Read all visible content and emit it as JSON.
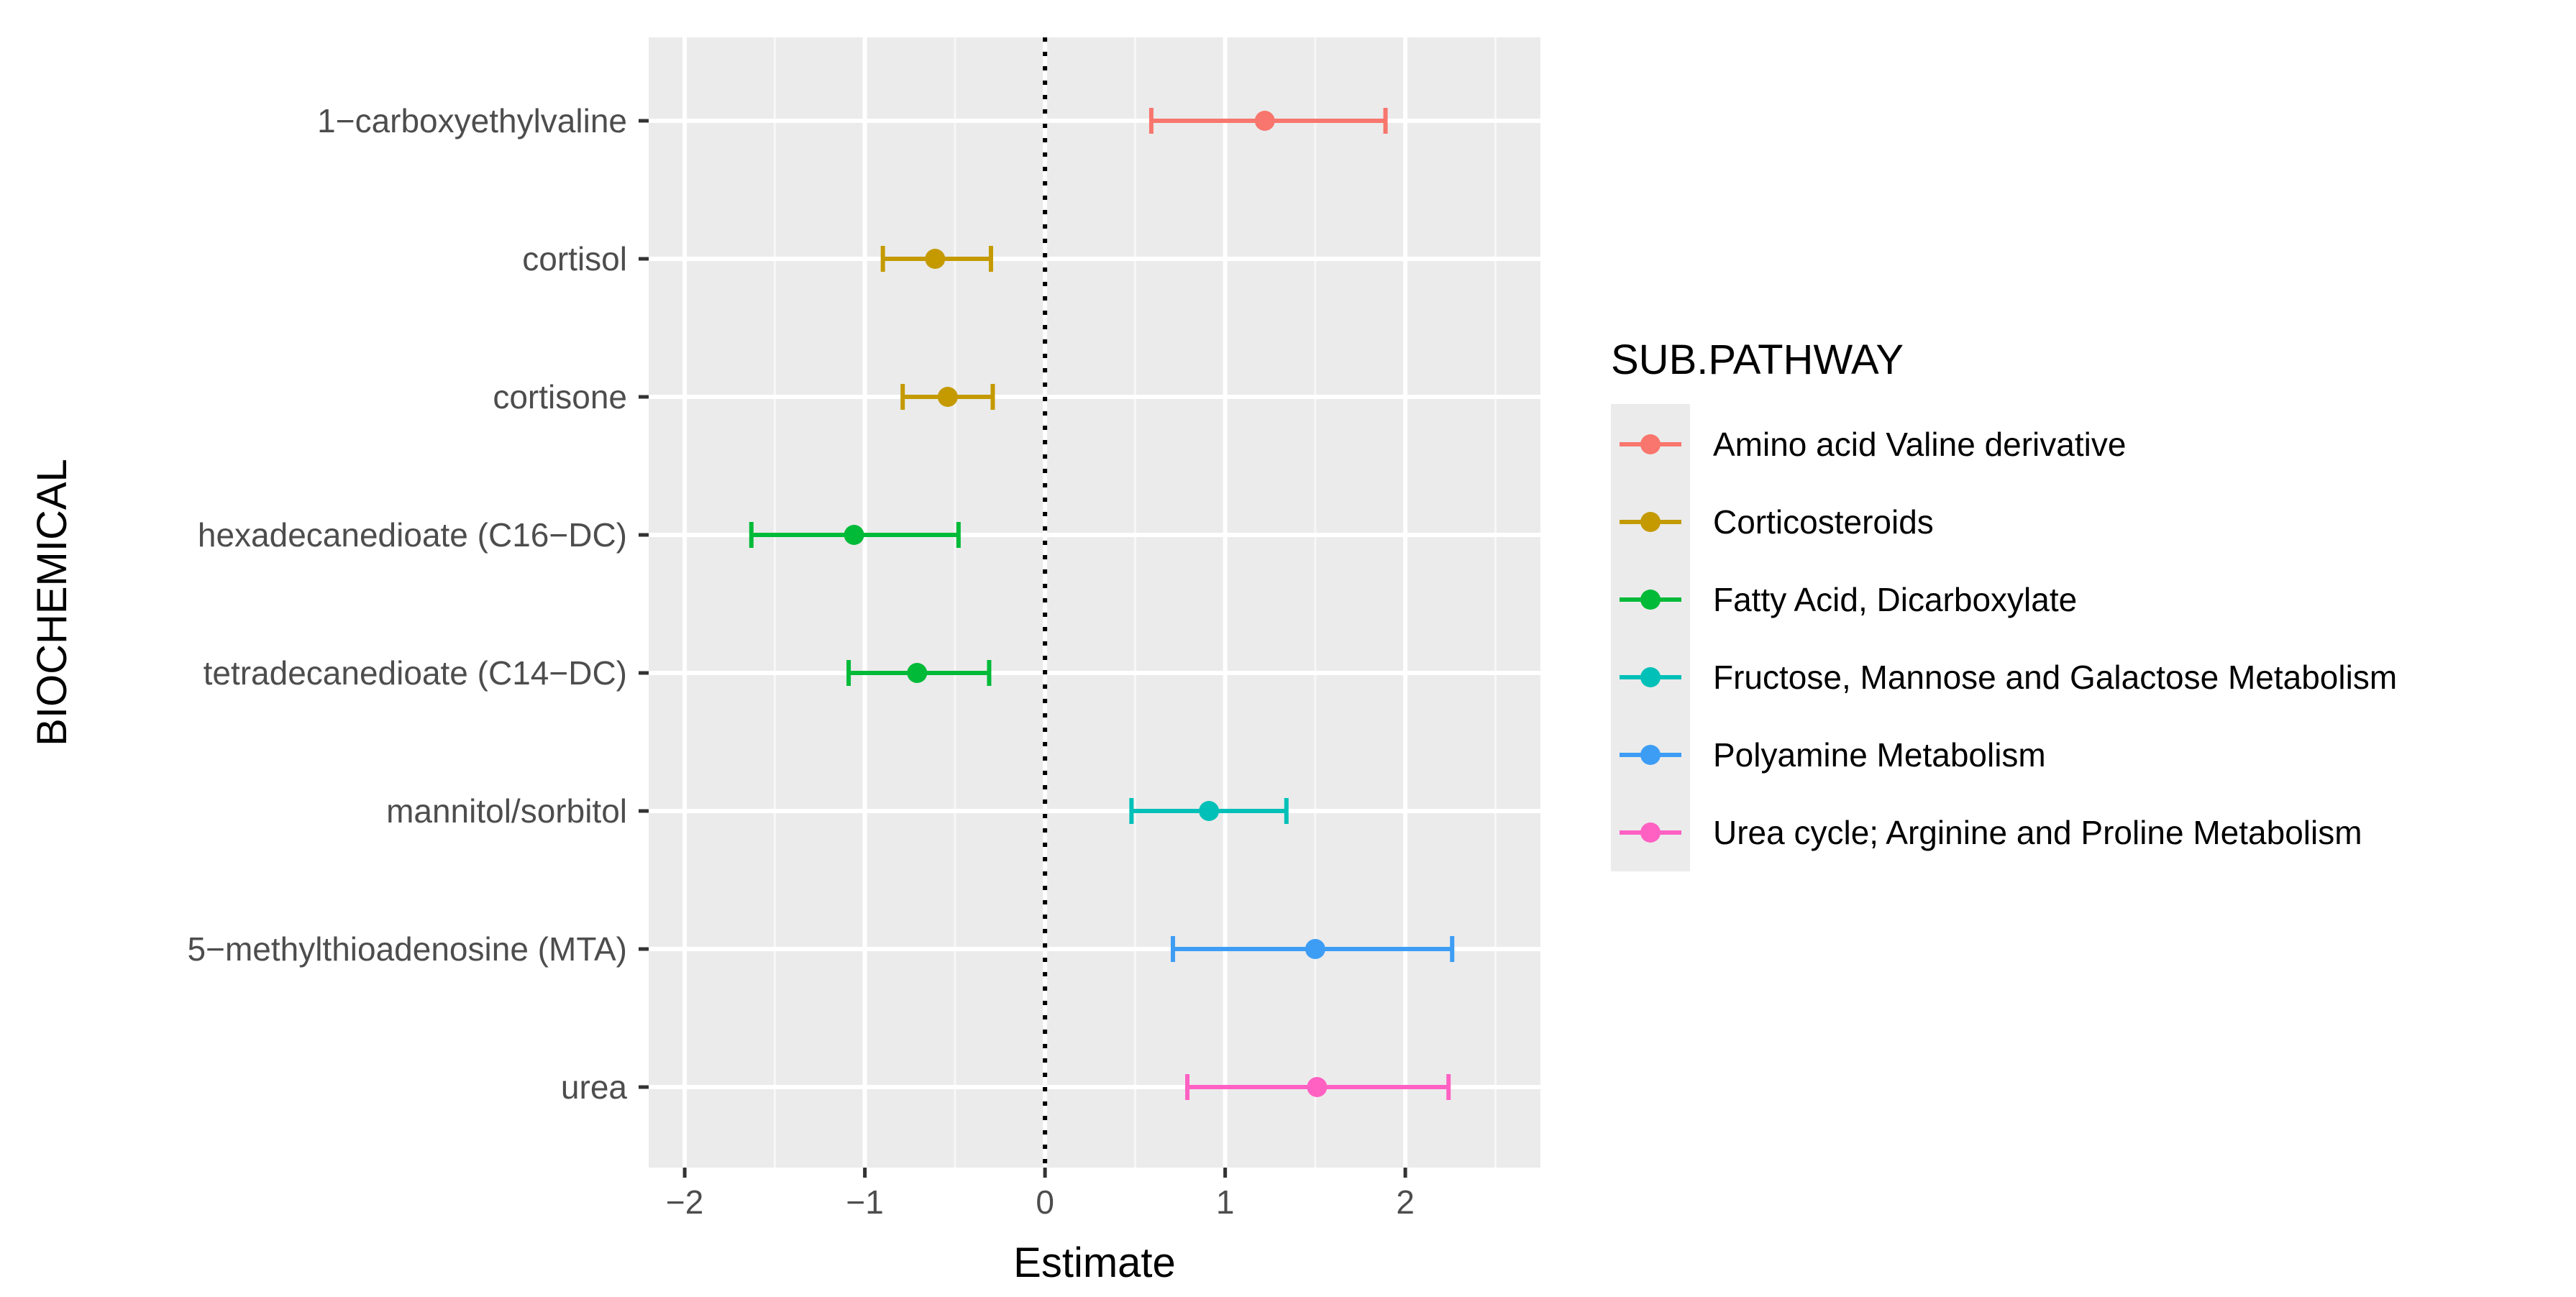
{
  "chart_data": {
    "type": "forest",
    "title": "",
    "xlabel": "Estimate",
    "ylabel": "BIOCHEMICAL",
    "xlim": [
      -2.2,
      2.75
    ],
    "x_ticks": [
      -2,
      -1,
      0,
      1,
      2
    ],
    "x_tick_labels": [
      "−2",
      "−1",
      "0",
      "1",
      "2"
    ],
    "reference_line": 0,
    "grid": true,
    "legend": {
      "title": "SUB.PATHWAY",
      "position": "right",
      "entries": [
        {
          "label": "Amino acid Valine derivative",
          "color": "#F8766D"
        },
        {
          "label": "Corticosteroids",
          "color": "#C49A00"
        },
        {
          "label": "Fatty Acid, Dicarboxylate",
          "color": "#00BA38"
        },
        {
          "label": "Fructose, Mannose and Galactose Metabolism",
          "color": "#00C0B8"
        },
        {
          "label": "Polyamine Metabolism",
          "color": "#3D9DF5"
        },
        {
          "label": "Urea cycle; Arginine and Proline Metabolism",
          "color": "#FF61C3"
        }
      ]
    },
    "rows": [
      {
        "label": "1−carboxyethylvaline",
        "estimate": 1.22,
        "low": 0.59,
        "high": 1.89,
        "group": 0
      },
      {
        "label": "cortisol",
        "estimate": -0.61,
        "low": -0.9,
        "high": -0.3,
        "group": 1
      },
      {
        "label": "cortisone",
        "estimate": -0.54,
        "low": -0.79,
        "high": -0.29,
        "group": 1
      },
      {
        "label": "hexadecanedioate (C16−DC)",
        "estimate": -1.06,
        "low": -1.63,
        "high": -0.48,
        "group": 2
      },
      {
        "label": "tetradecanedioate (C14−DC)",
        "estimate": -0.71,
        "low": -1.09,
        "high": -0.31,
        "group": 2
      },
      {
        "label": "mannitol/sorbitol",
        "estimate": 0.91,
        "low": 0.48,
        "high": 1.34,
        "group": 3
      },
      {
        "label": "5−methylthioadenosine (MTA)",
        "estimate": 1.5,
        "low": 0.71,
        "high": 2.26,
        "group": 4
      },
      {
        "label": "urea",
        "estimate": 1.51,
        "low": 0.79,
        "high": 2.24,
        "group": 5
      }
    ]
  }
}
